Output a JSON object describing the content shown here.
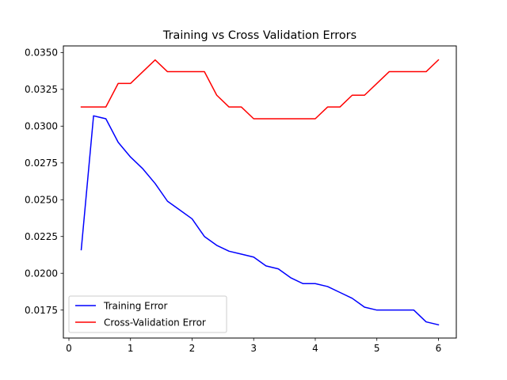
{
  "chart_data": {
    "type": "line",
    "title": "Training vs Cross Validation Errors",
    "xlabel": "",
    "ylabel": "",
    "xlim": [
      -0.09,
      6.29
    ],
    "ylim": [
      0.0156,
      0.03545
    ],
    "xticks": [
      0,
      1,
      2,
      3,
      4,
      5,
      6
    ],
    "xtick_labels": [
      "0",
      "1",
      "2",
      "3",
      "4",
      "5",
      "6"
    ],
    "yticks": [
      0.0175,
      0.02,
      0.0225,
      0.025,
      0.0275,
      0.03,
      0.0325,
      0.035
    ],
    "ytick_labels": [
      "0.0175",
      "0.0200",
      "0.0225",
      "0.0250",
      "0.0275",
      "0.0300",
      "0.0325",
      "0.0350"
    ],
    "grid": false,
    "legend_position": "lower-left",
    "x": [
      0.2,
      0.4,
      0.6,
      0.8,
      1.0,
      1.2,
      1.4,
      1.6,
      1.8,
      2.0,
      2.2,
      2.4,
      2.6,
      2.8,
      3.0,
      3.2,
      3.4,
      3.6,
      3.8,
      4.0,
      4.2,
      4.4,
      4.6,
      4.8,
      5.0,
      5.2,
      5.4,
      5.6,
      5.8,
      6.0
    ],
    "series": [
      {
        "name": "Training Error",
        "color": "#0000ff",
        "values": [
          0.0216,
          0.0307,
          0.0305,
          0.0289,
          0.0279,
          0.0271,
          0.0261,
          0.0249,
          0.0243,
          0.0237,
          0.0225,
          0.0219,
          0.0215,
          0.0213,
          0.0211,
          0.0205,
          0.0203,
          0.0197,
          0.0193,
          0.0193,
          0.0191,
          0.0187,
          0.0183,
          0.0177,
          0.0175,
          0.0175,
          0.0175,
          0.0175,
          0.0167,
          0.0165
        ]
      },
      {
        "name": "Cross-Validation Error",
        "color": "#ff0000",
        "values": [
          0.0313,
          0.0313,
          0.0313,
          0.0329,
          0.0329,
          0.0337,
          0.0345,
          0.0337,
          0.0337,
          0.0337,
          0.0337,
          0.0321,
          0.0313,
          0.0313,
          0.0305,
          0.0305,
          0.0305,
          0.0305,
          0.0305,
          0.0305,
          0.0313,
          0.0313,
          0.0321,
          0.0321,
          0.0329,
          0.0337,
          0.0337,
          0.0337,
          0.0337,
          0.0345
        ]
      }
    ]
  }
}
